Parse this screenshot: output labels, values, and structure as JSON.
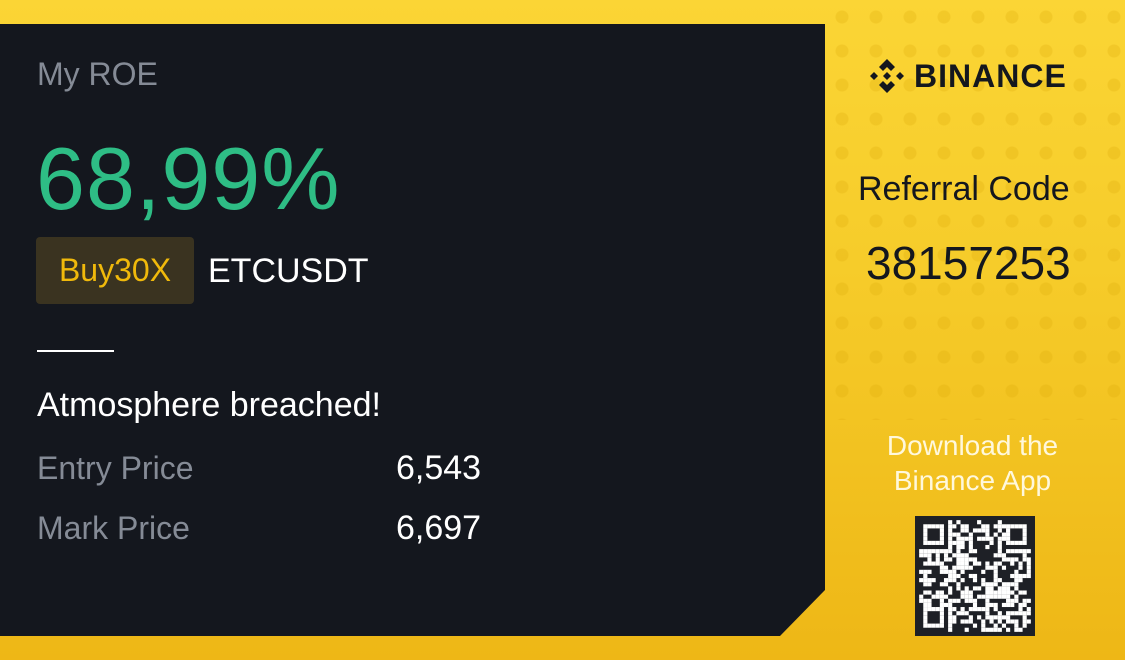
{
  "card": {
    "label": "My ROE",
    "roe": "68,99%",
    "side_leverage": "Buy30X",
    "symbol": "ETCUSDT",
    "message": "Atmosphere breached!",
    "entry_price_label": "Entry Price",
    "entry_price": "6,543",
    "mark_price_label": "Mark Price",
    "mark_price": "6,697"
  },
  "brand": {
    "logo_text": "BINANCE",
    "referral_label": "Referral Code",
    "referral_code": "38157253",
    "download_text": "Download the Binance App"
  },
  "colors": {
    "profit": "#2ebd85",
    "accent": "#f0b90b",
    "panel": "#14171e",
    "background": "#f6cc2a"
  }
}
